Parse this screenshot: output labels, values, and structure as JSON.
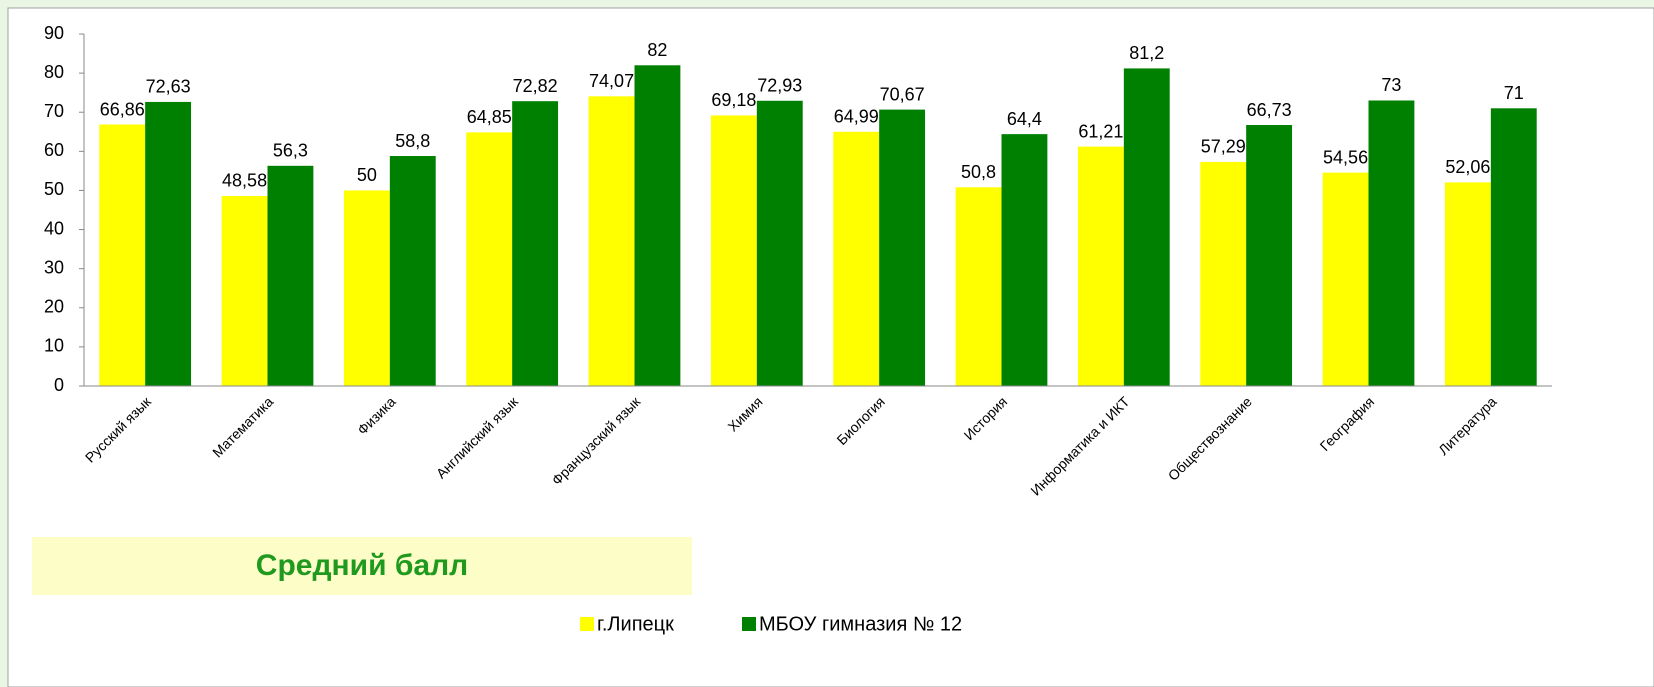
{
  "chart_data": {
    "type": "bar",
    "title": "Средний балл",
    "categories": [
      "Русский язык",
      "Математика",
      "Физика",
      "Английский язык",
      "Французский язык",
      "Химия",
      "Биология",
      "История",
      "Информатика и ИКТ",
      "Обществознание",
      "География",
      "Литература"
    ],
    "series": [
      {
        "name": "г.Липецк",
        "color": "#ffff00",
        "values": [
          66.86,
          48.58,
          50,
          64.85,
          74.07,
          69.18,
          64.99,
          50.8,
          61.21,
          57.29,
          54.56,
          52.06
        ],
        "value_labels": [
          "66,86",
          "48,58",
          "50",
          "64,85",
          "74,07",
          "69,18",
          "64,99",
          "50,8",
          "61,21",
          "57,29",
          "54,56",
          "52,06"
        ]
      },
      {
        "name": "МБОУ гимназия № 12",
        "color": "#008000",
        "values": [
          72.63,
          56.3,
          58.8,
          72.82,
          82,
          72.93,
          70.67,
          64.4,
          81.2,
          66.73,
          73,
          71
        ],
        "value_labels": [
          "72,63",
          "56,3",
          "58,8",
          "72,82",
          "82",
          "72,93",
          "70,67",
          "64,4",
          "81,2",
          "66,73",
          "73",
          "71"
        ]
      }
    ],
    "ylim": [
      0,
      90
    ],
    "yticks": [
      0,
      10,
      20,
      30,
      40,
      50,
      60,
      70,
      80,
      90
    ],
    "grid": false,
    "legend": "bottom"
  }
}
